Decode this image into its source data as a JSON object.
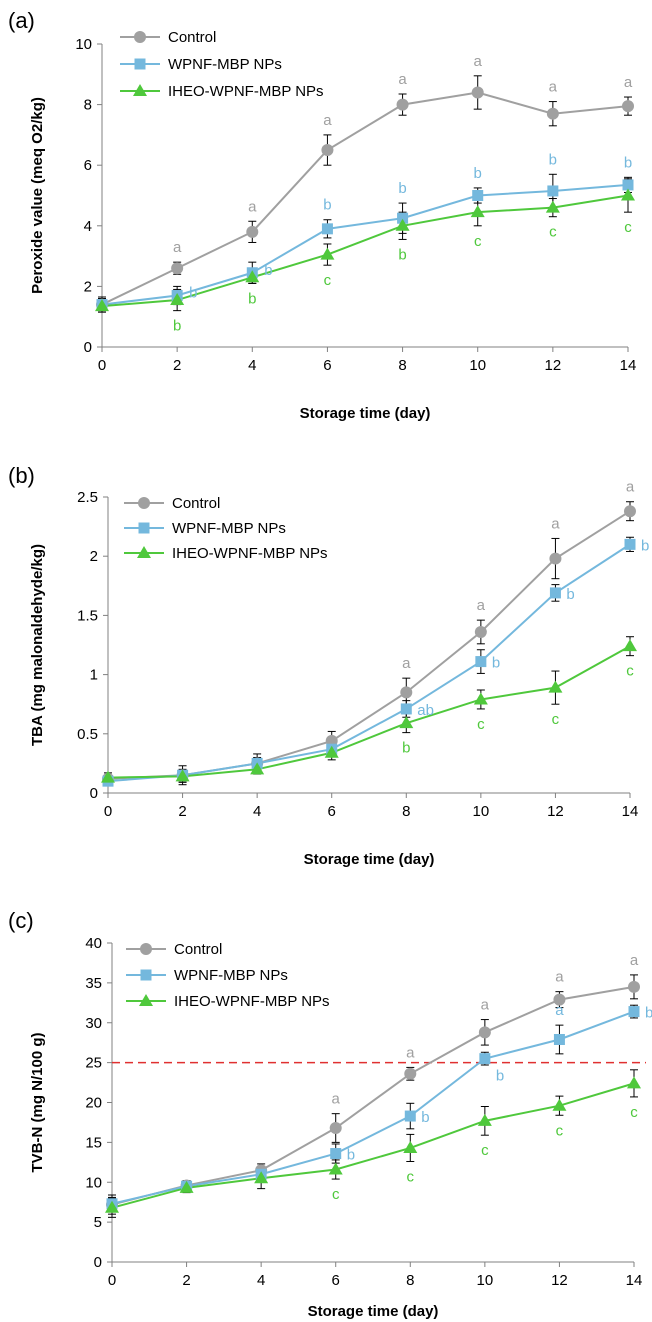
{
  "colors": {
    "control": "#a0a0a0",
    "wpnf": "#74b8dd",
    "iheo": "#4fc83c",
    "threshold": "#e03030",
    "axis": "#808080"
  },
  "legend": [
    "Control",
    "WPNF-MBP NPs",
    "IHEO-WPNF-MBP NPs"
  ],
  "chart_data": [
    {
      "panel_label": "(a)",
      "type": "line",
      "xlabel": "Storage time (day)",
      "ylabel": "Peroxide value (meq O2/kg)",
      "x": [
        0,
        2,
        4,
        6,
        8,
        10,
        12,
        14
      ],
      "xlim": [
        0,
        14
      ],
      "ylim": [
        0,
        10
      ],
      "xticks": [
        "0",
        "2",
        "4",
        "6",
        "8",
        "10",
        "12",
        "14"
      ],
      "yticks": [
        "0",
        "2",
        "4",
        "6",
        "8",
        "10"
      ],
      "grid": false,
      "legend_position": "top-left",
      "series": [
        {
          "name": "Control",
          "marker": "circle",
          "values": [
            1.4,
            2.6,
            3.8,
            6.5,
            8.0,
            8.4,
            7.7,
            7.95
          ],
          "errors": [
            0.2,
            0.2,
            0.35,
            0.5,
            0.35,
            0.55,
            0.4,
            0.3
          ],
          "labels": [
            "",
            "a",
            "a",
            "a",
            "a",
            "a",
            "a",
            "a"
          ]
        },
        {
          "name": "WPNF-MBP NPs",
          "marker": "square",
          "values": [
            1.4,
            1.7,
            2.45,
            3.9,
            4.25,
            5.0,
            5.15,
            5.35
          ],
          "errors": [
            0.25,
            0.3,
            0.35,
            0.3,
            0.5,
            0.25,
            0.55,
            0.25
          ],
          "labels": [
            "",
            "b",
            "b",
            "b",
            "b",
            "b",
            "b",
            "b"
          ]
        },
        {
          "name": "IHEO-WPNF-MBP NPs",
          "marker": "triangle",
          "values": [
            1.35,
            1.55,
            2.3,
            3.05,
            4.0,
            4.45,
            4.6,
            5.0
          ],
          "errors": [
            0.15,
            0.35,
            0.2,
            0.35,
            0.45,
            0.45,
            0.3,
            0.55
          ],
          "labels": [
            "",
            "b",
            "b",
            "c",
            "b",
            "c",
            "c",
            "c"
          ]
        }
      ]
    },
    {
      "panel_label": "(b)",
      "type": "line",
      "xlabel": "Storage time (day)",
      "ylabel": "TBA (mg malonaldehyde/kg)",
      "x": [
        0,
        2,
        4,
        6,
        8,
        10,
        12,
        14
      ],
      "xlim": [
        0,
        14
      ],
      "ylim": [
        0,
        2.5
      ],
      "xticks": [
        "0",
        "2",
        "4",
        "6",
        "8",
        "10",
        "12",
        "14"
      ],
      "yticks": [
        "0",
        "0.5",
        "1",
        "1.5",
        "2",
        "2.5"
      ],
      "grid": false,
      "legend_position": "top-left",
      "series": [
        {
          "name": "Control",
          "marker": "circle",
          "values": [
            0.12,
            0.15,
            0.25,
            0.44,
            0.85,
            1.36,
            1.98,
            2.38
          ],
          "errors": [
            0.03,
            0.08,
            0.08,
            0.08,
            0.12,
            0.1,
            0.17,
            0.08
          ],
          "labels": [
            "",
            "",
            "",
            "",
            "a",
            "a",
            "a",
            "a"
          ]
        },
        {
          "name": "WPNF-MBP NPs",
          "marker": "square",
          "values": [
            0.1,
            0.15,
            0.25,
            0.37,
            0.71,
            1.11,
            1.69,
            2.1
          ],
          "errors": [
            0.03,
            0.05,
            0.05,
            0.05,
            0.07,
            0.1,
            0.07,
            0.06
          ],
          "labels": [
            "",
            "",
            "",
            "",
            "ab",
            "b",
            "b",
            "b"
          ]
        },
        {
          "name": "IHEO-WPNF-MBP NPs",
          "marker": "triangle",
          "values": [
            0.13,
            0.14,
            0.2,
            0.34,
            0.59,
            0.79,
            0.89,
            1.24
          ],
          "errors": [
            0.04,
            0.05,
            0.04,
            0.06,
            0.08,
            0.08,
            0.14,
            0.08
          ],
          "labels": [
            "",
            "",
            "",
            "",
            "b",
            "c",
            "c",
            "c"
          ]
        }
      ]
    },
    {
      "panel_label": "(c)",
      "type": "line",
      "xlabel": "Storage time (day)",
      "ylabel": "TVB-N (mg N/100 g)",
      "x": [
        0,
        2,
        4,
        6,
        8,
        10,
        12,
        14
      ],
      "xlim": [
        0,
        14
      ],
      "ylim": [
        0,
        40
      ],
      "xticks": [
        "0",
        "2",
        "4",
        "6",
        "8",
        "10",
        "12",
        "14"
      ],
      "yticks": [
        "0",
        "5",
        "10",
        "15",
        "20",
        "25",
        "30",
        "35",
        "40"
      ],
      "grid": false,
      "legend_position": "top-left",
      "threshold": 25,
      "series": [
        {
          "name": "Control",
          "marker": "circle",
          "values": [
            7.2,
            9.6,
            11.5,
            16.8,
            23.6,
            28.8,
            32.9,
            34.5
          ],
          "errors": [
            1.2,
            0.6,
            0.8,
            1.8,
            0.8,
            1.6,
            1.0,
            1.5
          ],
          "labels": [
            "",
            "",
            "",
            "a",
            "a",
            "a",
            "a",
            "a"
          ]
        },
        {
          "name": "WPNF-MBP NPs",
          "marker": "square",
          "values": [
            7.3,
            9.5,
            11.0,
            13.6,
            18.3,
            25.5,
            27.9,
            31.4
          ],
          "errors": [
            0.8,
            0.5,
            1.0,
            1.2,
            1.6,
            0.8,
            1.8,
            0.8
          ],
          "labels": [
            "",
            "",
            "",
            "b",
            "b",
            "b",
            "a",
            "b"
          ]
        },
        {
          "name": "IHEO-WPNF-MBP NPs",
          "marker": "triangle",
          "values": [
            6.8,
            9.3,
            10.5,
            11.6,
            14.3,
            17.7,
            19.6,
            22.4
          ],
          "errors": [
            1.2,
            0.6,
            1.3,
            1.2,
            1.7,
            1.8,
            1.2,
            1.7
          ],
          "labels": [
            "",
            "",
            "",
            "c",
            "c",
            "c",
            "c",
            "c"
          ]
        }
      ]
    }
  ]
}
